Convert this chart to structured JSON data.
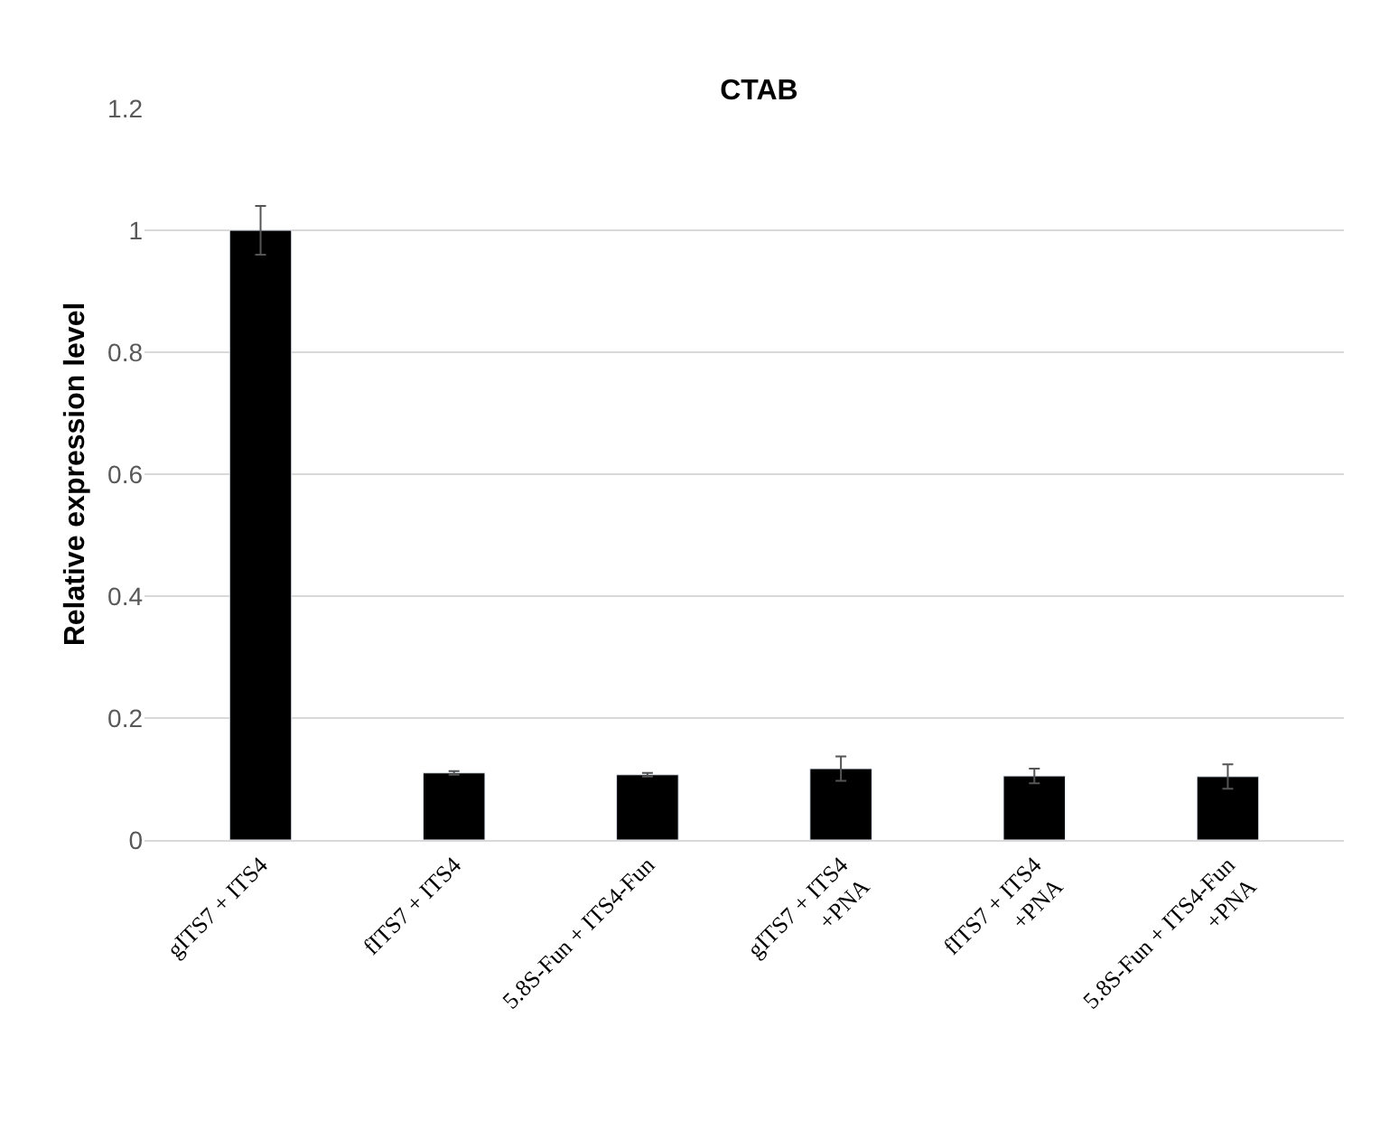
{
  "chart_data": {
    "type": "bar",
    "title": "CTAB",
    "ylabel": "Relative expression level",
    "categories": [
      "gITS7 + ITS4",
      "fITS7 + ITS4",
      "5.8S-Fun + ITS4-Fun",
      "gITS7 + ITS4\n+PNA",
      "fITS7 + ITS4\n+PNA",
      "5.8S-Fun + ITS4-Fun\n+PNA"
    ],
    "values": [
      1.0,
      0.11,
      0.107,
      0.117,
      0.105,
      0.104
    ],
    "errors": [
      0.04,
      0.003,
      0.003,
      0.02,
      0.012,
      0.02
    ],
    "color": "#000000",
    "ylim": [
      0,
      1.2
    ],
    "yticks": [
      0,
      0.2,
      0.4,
      0.6,
      0.8,
      1,
      1.2
    ],
    "grid": "y"
  }
}
